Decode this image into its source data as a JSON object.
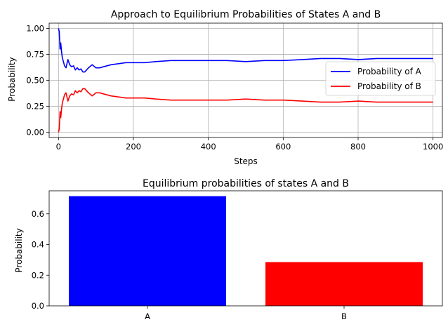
{
  "chart_data": [
    {
      "type": "line",
      "title": "Approach to Equilibrium Probabilities of States A and B",
      "xlabel": "Steps",
      "ylabel": "Probability",
      "xlim": [
        -25,
        1025
      ],
      "ylim": [
        -0.05,
        1.05
      ],
      "xticks": [
        0,
        200,
        400,
        600,
        800,
        1000
      ],
      "yticks": [
        0.0,
        0.25,
        0.5,
        0.75,
        1.0
      ],
      "ytick_labels": [
        "0.00",
        "0.25",
        "0.50",
        "0.75",
        "1.00"
      ],
      "grid": true,
      "legend_placement": "center-right",
      "series": [
        {
          "name": "Probability of A",
          "color": "#0000ff",
          "x": [
            0,
            2,
            4,
            6,
            8,
            10,
            13,
            16,
            20,
            25,
            30,
            35,
            40,
            45,
            50,
            55,
            60,
            65,
            70,
            75,
            80,
            90,
            100,
            110,
            120,
            140,
            160,
            180,
            200,
            230,
            260,
            300,
            350,
            400,
            450,
            500,
            550,
            600,
            650,
            700,
            750,
            800,
            850,
            900,
            950,
            1000
          ],
          "y": [
            1.0,
            0.97,
            0.8,
            0.86,
            0.78,
            0.72,
            0.68,
            0.64,
            0.62,
            0.7,
            0.65,
            0.63,
            0.64,
            0.6,
            0.62,
            0.6,
            0.61,
            0.58,
            0.58,
            0.6,
            0.62,
            0.65,
            0.62,
            0.62,
            0.63,
            0.65,
            0.66,
            0.67,
            0.67,
            0.67,
            0.68,
            0.69,
            0.69,
            0.69,
            0.69,
            0.68,
            0.69,
            0.69,
            0.7,
            0.71,
            0.71,
            0.7,
            0.71,
            0.71,
            0.71,
            0.71
          ]
        },
        {
          "name": "Probability of B",
          "color": "#ff0000",
          "x": [
            0,
            2,
            4,
            6,
            8,
            10,
            13,
            16,
            20,
            25,
            30,
            35,
            40,
            45,
            50,
            55,
            60,
            65,
            70,
            75,
            80,
            90,
            100,
            110,
            120,
            140,
            160,
            180,
            200,
            230,
            260,
            300,
            350,
            400,
            450,
            500,
            550,
            600,
            650,
            700,
            750,
            800,
            850,
            900,
            950,
            1000
          ],
          "y": [
            0.0,
            0.03,
            0.2,
            0.14,
            0.22,
            0.28,
            0.32,
            0.36,
            0.38,
            0.3,
            0.35,
            0.37,
            0.36,
            0.4,
            0.38,
            0.4,
            0.39,
            0.42,
            0.42,
            0.4,
            0.38,
            0.35,
            0.38,
            0.38,
            0.37,
            0.35,
            0.34,
            0.33,
            0.33,
            0.33,
            0.32,
            0.31,
            0.31,
            0.31,
            0.31,
            0.32,
            0.31,
            0.31,
            0.3,
            0.29,
            0.29,
            0.3,
            0.29,
            0.29,
            0.29,
            0.29
          ]
        }
      ]
    },
    {
      "type": "bar",
      "title": "Equilibrium probabilities of states A and B",
      "xlabel": "",
      "ylabel": "Probability",
      "categories": [
        "A",
        "B"
      ],
      "values": [
        0.715,
        0.285
      ],
      "colors": [
        "#0000ff",
        "#ff0000"
      ],
      "ylim": [
        0,
        0.75
      ],
      "yticks": [
        0.0,
        0.2,
        0.4,
        0.6
      ],
      "ytick_labels": [
        "0.0",
        "0.2",
        "0.4",
        "0.6"
      ],
      "grid": false
    }
  ]
}
